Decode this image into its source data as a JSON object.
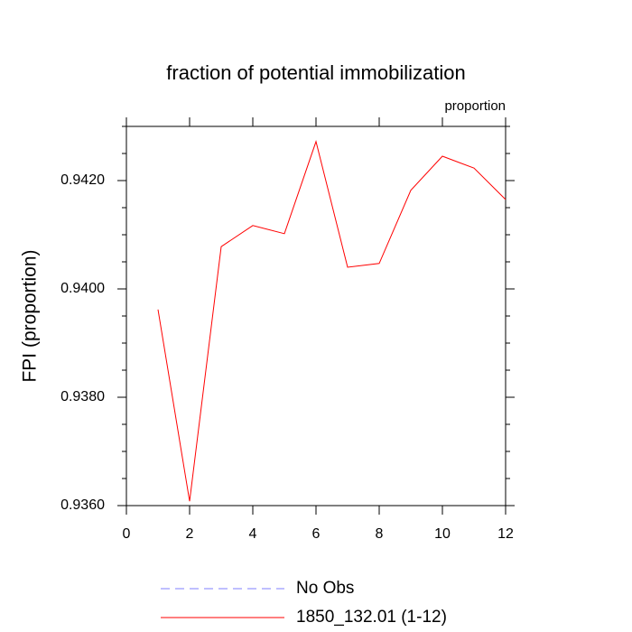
{
  "chart_data": {
    "type": "line",
    "title": "fraction of potential immobilization",
    "units_label": "proportion",
    "ylabel": "FPI  (proportion)",
    "x": [
      1,
      2,
      3,
      4,
      5,
      6,
      7,
      8,
      9,
      10,
      11,
      12
    ],
    "series": [
      {
        "name": "No Obs",
        "color": "#7f7fff",
        "dashed": true,
        "values": [
          null,
          null,
          null,
          null,
          null,
          null,
          null,
          null,
          null,
          null,
          null,
          null
        ]
      },
      {
        "name": "1850_132.01 (1-12)",
        "color": "#ff0000",
        "dashed": false,
        "values": [
          0.93962,
          0.93608,
          0.94078,
          0.94117,
          0.94102,
          0.94272,
          0.9404,
          0.94047,
          0.94182,
          0.94245,
          0.94223,
          0.94165
        ]
      }
    ],
    "xlim": [
      0,
      12
    ],
    "xticks": [
      0,
      2,
      4,
      6,
      8,
      10,
      12
    ],
    "ylim": [
      0.936,
      0.943
    ],
    "yticks": [
      {
        "value": 0.936,
        "label": "0.9360"
      },
      {
        "value": 0.938,
        "label": "0.9380"
      },
      {
        "value": 0.94,
        "label": "0.9400"
      },
      {
        "value": 0.942,
        "label": "0.9420"
      }
    ],
    "yminorticks": [
      0.9365,
      0.937,
      0.9375,
      0.9385,
      0.939,
      0.9395,
      0.9405,
      0.941,
      0.9415,
      0.9425,
      0.943
    ],
    "grid": false
  }
}
